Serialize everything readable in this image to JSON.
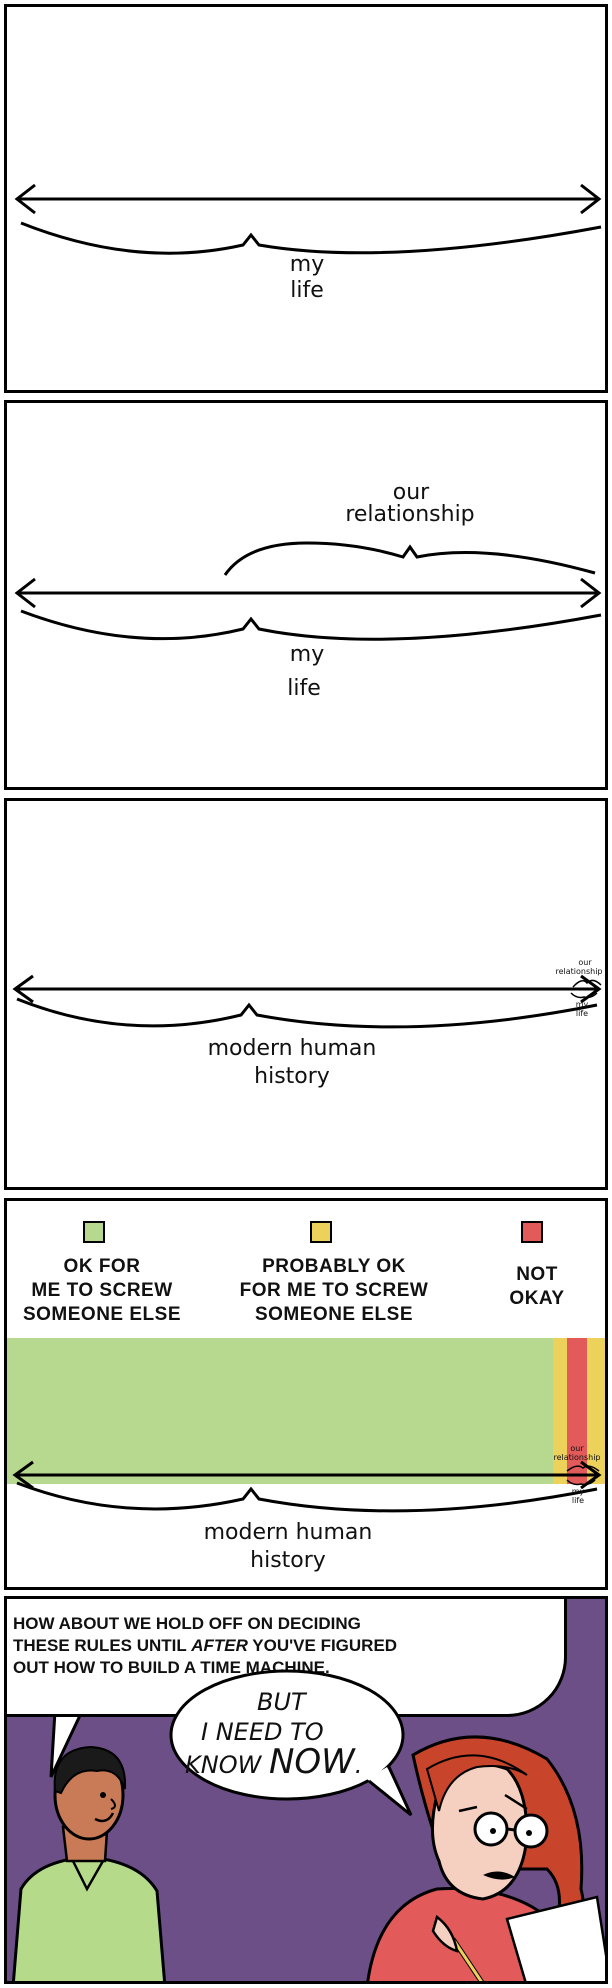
{
  "panel1": {
    "label_line1": "my",
    "label_line2": "life"
  },
  "panel2": {
    "top_label_line1": "our",
    "top_label_line2": "relationship",
    "label_line1": "my",
    "label_line2": "life"
  },
  "panel3": {
    "label_line1": "modern human",
    "label_line2": "history",
    "mini_our": "our",
    "mini_relationship": "relationship",
    "mini_my": "my",
    "mini_life": "life"
  },
  "panel4": {
    "legend": [
      {
        "color": "#b7d98f",
        "line1": "OK FOR",
        "line2": "ME TO SCREW",
        "line3": "SOMEONE ELSE"
      },
      {
        "color": "#ecd15a",
        "line1": "PROBABLY OK",
        "line2": "FOR ME TO SCREW",
        "line3": "SOMEONE ELSE"
      },
      {
        "color": "#e25a5a",
        "line1": "NOT",
        "line2": "OKAY",
        "line3": ""
      }
    ],
    "label_line1": "modern human",
    "label_line2": "history",
    "mini_our": "our",
    "mini_relationship": "relationship",
    "mini_my": "my",
    "mini_life": "life"
  },
  "panel5": {
    "speech_man_line1": "HOW ABOUT WE HOLD OFF ON DECIDING",
    "speech_man_line2_a": "THESE RULES UNTIL ",
    "speech_man_line2_em": "AFTER",
    "speech_man_line2_b": " YOU'VE FIGURED",
    "speech_man_line3": "OUT HOW TO BUILD A TIME MACHINE.",
    "speech_woman_line1": "BUT",
    "speech_woman_line2": "I NEED TO",
    "speech_woman_line3_a": "KNOW ",
    "speech_woman_line3_em": "NOW",
    "speech_woman_line3_b": ".",
    "background_color": "#6b4f86",
    "shirt_man_color": "#b5db8a",
    "shirt_woman_color": "#e25a5a",
    "hair_woman_color": "#c8452c",
    "skin_man_color": "#c97a56",
    "skin_woman_color": "#f5cfc0"
  }
}
